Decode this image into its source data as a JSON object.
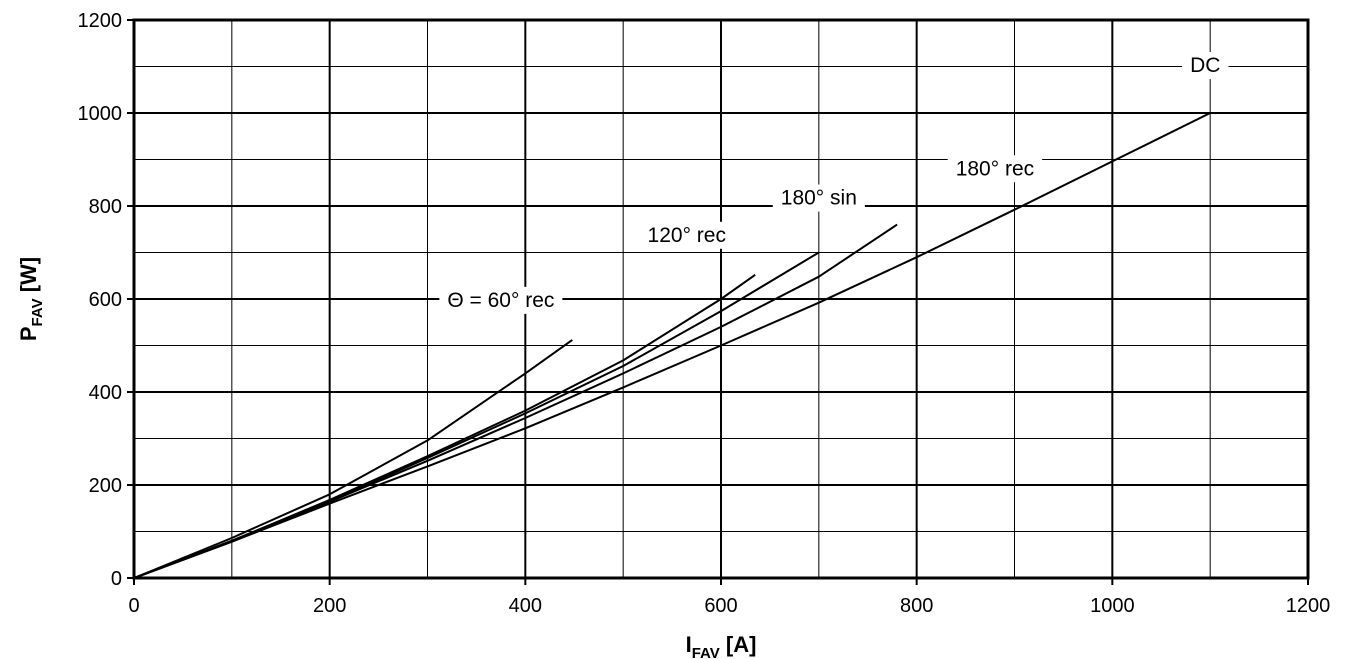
{
  "chart_data": {
    "type": "line",
    "title": "",
    "xlabel": {
      "main": "I",
      "sub": "FAV",
      "unit": " [A]"
    },
    "ylabel": {
      "main": "P",
      "sub": "FAV",
      "unit": " [W]"
    },
    "xlim": [
      0,
      1200
    ],
    "ylim": [
      0,
      1200
    ],
    "x_ticks": [
      0,
      200,
      400,
      600,
      800,
      1000,
      1200
    ],
    "y_ticks": [
      0,
      200,
      400,
      600,
      800,
      1000,
      1200
    ],
    "x_minor_step": 100,
    "y_minor_step": 100,
    "grid": true,
    "legend": "none",
    "series": [
      {
        "name": "DC",
        "x": [
          0,
          100,
          200,
          300,
          400,
          500,
          600,
          700,
          800,
          900,
          1000,
          1100
        ],
        "y": [
          0,
          78,
          160,
          240,
          322,
          410,
          500,
          592,
          690,
          792,
          896,
          1000
        ]
      },
      {
        "name": "180° rec",
        "x": [
          0,
          100,
          200,
          300,
          400,
          500,
          600,
          700,
          780
        ],
        "y": [
          0,
          78,
          164,
          252,
          344,
          440,
          540,
          648,
          760
        ]
      },
      {
        "name": "180° sin",
        "x": [
          0,
          100,
          200,
          300,
          400,
          500,
          600,
          700
        ],
        "y": [
          0,
          80,
          166,
          258,
          354,
          456,
          574,
          700
        ]
      },
      {
        "name": "120° rec",
        "x": [
          0,
          100,
          200,
          300,
          400,
          500,
          600,
          635
        ],
        "y": [
          0,
          80,
          168,
          262,
          360,
          468,
          600,
          652
        ]
      },
      {
        "name": "Θ = 60° rec",
        "x": [
          0,
          100,
          200,
          300,
          400,
          448
        ],
        "y": [
          0,
          86,
          180,
          296,
          440,
          512
        ]
      }
    ],
    "annotations": [
      {
        "text": "DC",
        "x": 1095,
        "y": 1100
      },
      {
        "text": "180° rec",
        "x": 880,
        "y": 878
      },
      {
        "text": "180° sin",
        "x": 700,
        "y": 815
      },
      {
        "text": "120° rec",
        "x": 565,
        "y": 735
      },
      {
        "text": "Θ = 60° rec",
        "x": 375,
        "y": 595
      }
    ]
  }
}
